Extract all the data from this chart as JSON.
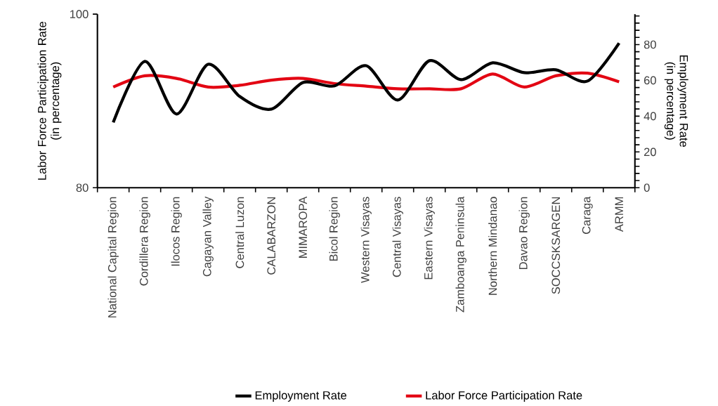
{
  "chart_data": {
    "type": "line",
    "ylabel": "Labor Force Participation Rate\n(in percentage)",
    "y2label": "Employment Rate\n(in percentage)",
    "categories": [
      "National Capital Region",
      "Cordillera Region",
      "Ilocos Region",
      "Cagayan Valley",
      "Central Luzon",
      "CALABARZON",
      "MIMAROPA",
      "Bicol Region",
      "Western Visayas",
      "Central Visayas",
      "Eastern Visayas",
      "Zamboanga Peninsula",
      "Northern Mindanao",
      "Davao Region",
      "SOCCSKSARGEN",
      "Caraga",
      "ARMM"
    ],
    "series": [
      {
        "name": "Employment Rate",
        "color": "#000000",
        "axis": "y2",
        "values": [
          36.5,
          70.6,
          41.2,
          69.0,
          51.0,
          43.9,
          58.8,
          56.9,
          68.2,
          49.0,
          71.0,
          60.4,
          69.8,
          64.3,
          65.9,
          59.6,
          80.8
        ]
      },
      {
        "name": "Labor Force Participation Rate",
        "color": "#e30613",
        "values": [
          91.6,
          92.9,
          92.6,
          91.6,
          91.8,
          92.4,
          92.6,
          92.0,
          91.7,
          91.4,
          91.4,
          91.4,
          93.1,
          91.6,
          92.9,
          93.2,
          92.2
        ]
      }
    ],
    "ylim": [
      80,
      100
    ],
    "yticks": [
      80,
      100
    ],
    "y2lim": [
      0,
      97
    ],
    "y2ticks": [
      0,
      {
        "value": 4,
        "label": null
      },
      {
        "value": 8,
        "label": null
      },
      {
        "value": 12,
        "label": null
      },
      {
        "value": 16,
        "label": null
      },
      20,
      {
        "value": 24,
        "label": null
      },
      {
        "value": 28,
        "label": null
      },
      {
        "value": 32,
        "label": null
      },
      {
        "value": 36,
        "label": null
      },
      40,
      {
        "value": 44,
        "label": null
      },
      {
        "value": 48,
        "label": null
      },
      {
        "value": 52,
        "label": null
      },
      {
        "value": 56,
        "label": null
      },
      60,
      {
        "value": 64,
        "label": null
      },
      {
        "value": 68,
        "label": null
      },
      {
        "value": 72,
        "label": null
      },
      {
        "value": 76,
        "label": null
      },
      80,
      {
        "value": 84,
        "label": null
      },
      {
        "value": 88,
        "label": null
      },
      {
        "value": 92,
        "label": null
      },
      {
        "value": 96,
        "label": null
      }
    ],
    "grid": false,
    "legend": "bottom",
    "marker": "none",
    "line_style": "solid"
  }
}
